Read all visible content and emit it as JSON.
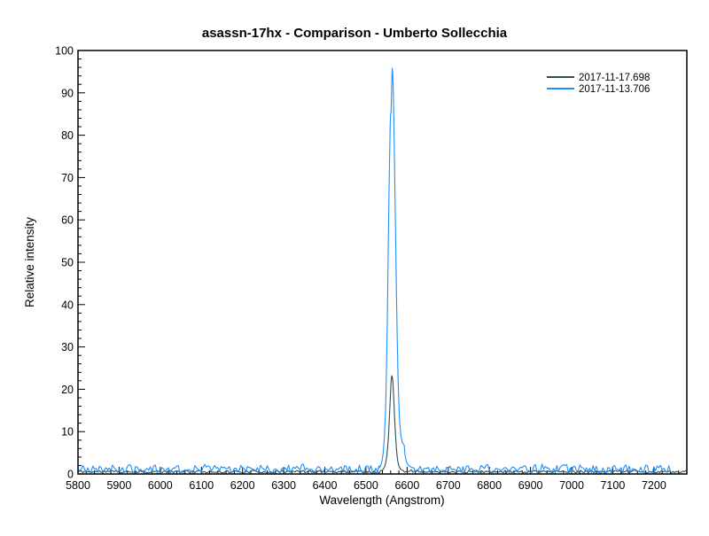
{
  "chart_data": {
    "type": "line",
    "title": "asassn-17hx - Comparison - Umberto Sollecchia",
    "xlabel": "Wavelength (Angstrom)",
    "ylabel": "Relative intensity",
    "xlim": [
      5800,
      7280
    ],
    "ylim": [
      0,
      100
    ],
    "x_major_tick_step": 100,
    "x_minor_tick_step": 20,
    "y_major_tick_step": 10,
    "y_minor_tick_step": 2,
    "x_tick_labels": [
      "5800",
      "5900",
      "6000",
      "6100",
      "6200",
      "6300",
      "6400",
      "6500",
      "6600",
      "6700",
      "6800",
      "6900",
      "7000",
      "7100",
      "7200"
    ],
    "y_tick_labels": [
      "0",
      "10",
      "20",
      "30",
      "40",
      "50",
      "60",
      "70",
      "80",
      "90",
      "100"
    ],
    "grid": false,
    "legend_position": "top-right",
    "axis_color": "#000000",
    "background_color": "#ffffff",
    "emission_peak_wavelength": 6563,
    "series": [
      {
        "name": "2017-11-17.698",
        "color": "#2f4f4f",
        "peak_wavelength": 6563,
        "peak_intensity": 23.2,
        "baseline_intensity": 0.55,
        "segments": [
          {
            "kind": "noise",
            "x0": 5800,
            "x1": 6536,
            "step": 4,
            "level": 0.55,
            "amp": 0.32,
            "seed": 11
          },
          {
            "kind": "points",
            "pts": [
              [
                6536,
                0.75
              ],
              [
                6541,
                1.0
              ],
              [
                6545,
                1.6
              ],
              [
                6548,
                2.6
              ],
              [
                6551,
                4.5
              ],
              [
                6553,
                6.5
              ],
              [
                6555,
                9.5
              ],
              [
                6557,
                13.5
              ],
              [
                6559,
                17.5
              ],
              [
                6560,
                19.5
              ],
              [
                6561,
                21.5
              ],
              [
                6562,
                22.8
              ],
              [
                6563,
                23.2
              ],
              [
                6564,
                22.9
              ],
              [
                6565,
                22.2
              ],
              [
                6566,
                20.8
              ],
              [
                6567,
                19.0
              ],
              [
                6568,
                16.8
              ],
              [
                6570,
                12.5
              ],
              [
                6572,
                8.8
              ],
              [
                6574,
                6.0
              ],
              [
                6576,
                4.0
              ],
              [
                6578,
                2.7
              ],
              [
                6580,
                1.9
              ],
              [
                6583,
                1.3
              ],
              [
                6586,
                1.0
              ],
              [
                6590,
                0.8
              ]
            ]
          },
          {
            "kind": "noise",
            "x0": 6594,
            "x1": 7280,
            "step": 4,
            "level": 0.55,
            "amp": 0.32,
            "seed": 12
          }
        ]
      },
      {
        "name": "2017-11-13.706",
        "color": "#1e90ff",
        "peak_wavelength": 6564,
        "peak_intensity": 95.8,
        "baseline_intensity": 1.2,
        "segments": [
          {
            "kind": "noise",
            "x0": 5800,
            "x1": 6532,
            "step": 4,
            "level": 1.2,
            "amp": 1.05,
            "seed": 21
          },
          {
            "kind": "points",
            "pts": [
              [
                6532,
                1.4
              ],
              [
                6536,
                2.0
              ],
              [
                6539,
                3.0
              ],
              [
                6542,
                5.0
              ],
              [
                6545,
                9.0
              ],
              [
                6548,
                16
              ],
              [
                6550,
                25
              ],
              [
                6552,
                37
              ],
              [
                6554,
                52
              ],
              [
                6556,
                66
              ],
              [
                6557,
                72
              ],
              [
                6558,
                78
              ],
              [
                6559,
                83
              ],
              [
                6560,
                85
              ],
              [
                6561,
                85.3
              ],
              [
                6562,
                89
              ],
              [
                6563,
                93.5
              ],
              [
                6564,
                95.8
              ],
              [
                6565,
                94.8
              ],
              [
                6566,
                92
              ],
              [
                6567,
                87.5
              ],
              [
                6568,
                82
              ],
              [
                6570,
                70
              ],
              [
                6572,
                56
              ],
              [
                6574,
                43
              ],
              [
                6576,
                32
              ],
              [
                6578,
                23
              ],
              [
                6580,
                16.5
              ],
              [
                6582,
                12
              ],
              [
                6585,
                9.0
              ],
              [
                6588,
                7.5
              ],
              [
                6591,
                7.0
              ],
              [
                6593,
                6.8
              ],
              [
                6595,
                4.5
              ],
              [
                6598,
                3.0
              ],
              [
                6602,
                2.2
              ],
              [
                6607,
                1.8
              ],
              [
                6612,
                1.5
              ]
            ]
          },
          {
            "kind": "noise",
            "x0": 6616,
            "x1": 7243,
            "step": 4,
            "level": 1.2,
            "amp": 1.05,
            "seed": 22
          }
        ]
      }
    ]
  }
}
